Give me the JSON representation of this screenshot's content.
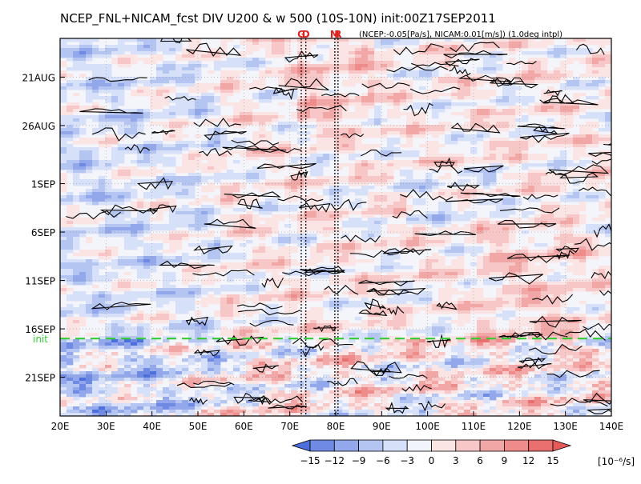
{
  "chart_data": {
    "type": "heatmap",
    "title": "NCEP_FNL+NICAM_fcst DIV U200 & w 500 (10S-10N) init:00Z17SEP2011",
    "subtitle": "(NCEP:-0.05[Pa/s], NICAM:0.01[m/s]) (1.0deg intpl)",
    "x_axis": {
      "ticks": [
        20,
        30,
        40,
        50,
        60,
        70,
        80,
        90,
        100,
        110,
        120,
        130,
        140
      ],
      "tick_labels": [
        "20E",
        "30E",
        "40E",
        "50E",
        "60E",
        "70E",
        "80E",
        "90E",
        "100E",
        "110E",
        "120E",
        "130E",
        "140E"
      ],
      "range": [
        20,
        140
      ]
    },
    "y_axis": {
      "tick_dates": [
        "2011-08-21",
        "2011-08-26",
        "2011-09-01",
        "2011-09-06",
        "2011-09-11",
        "2011-09-16",
        "2011-09-21"
      ],
      "tick_labels": [
        "21AUG",
        "26AUG",
        "1SEP",
        "6SEP",
        "11SEP",
        "16SEP",
        "21SEP"
      ],
      "range": [
        "2011-08-17",
        "2011-09-25"
      ],
      "direction": "time increases downward"
    },
    "init_line": {
      "label": "init",
      "date": "2011-09-17",
      "color": "#33cc33"
    },
    "markers": [
      {
        "label": "G",
        "lon": 72.5
      },
      {
        "label": "D",
        "lon": 73.5
      },
      {
        "label": "M",
        "lon": 79.8
      },
      {
        "label": "R",
        "lon": 80.5
      }
    ],
    "marker_color": "#dd2222",
    "grid": "dotted",
    "colorbar": {
      "levels": [
        -15,
        -12,
        -9,
        -6,
        -3,
        0,
        3,
        6,
        9,
        12,
        15
      ],
      "tick_labels": [
        "−15",
        "−12",
        "−9",
        "−6",
        "−3",
        "0",
        "3",
        "6",
        "9",
        "12",
        "15"
      ],
      "colors": [
        "#4b6fdd",
        "#6e8ae3",
        "#92a8ea",
        "#b5c5f1",
        "#d6e0f8",
        "#f2f4fb",
        "#fbe4e4",
        "#f7c6c6",
        "#f2a7a7",
        "#ee8c8c",
        "#ea6f6f",
        "#e75a5a"
      ],
      "units": "[10⁻⁶/s]",
      "extend": "both"
    }
  }
}
